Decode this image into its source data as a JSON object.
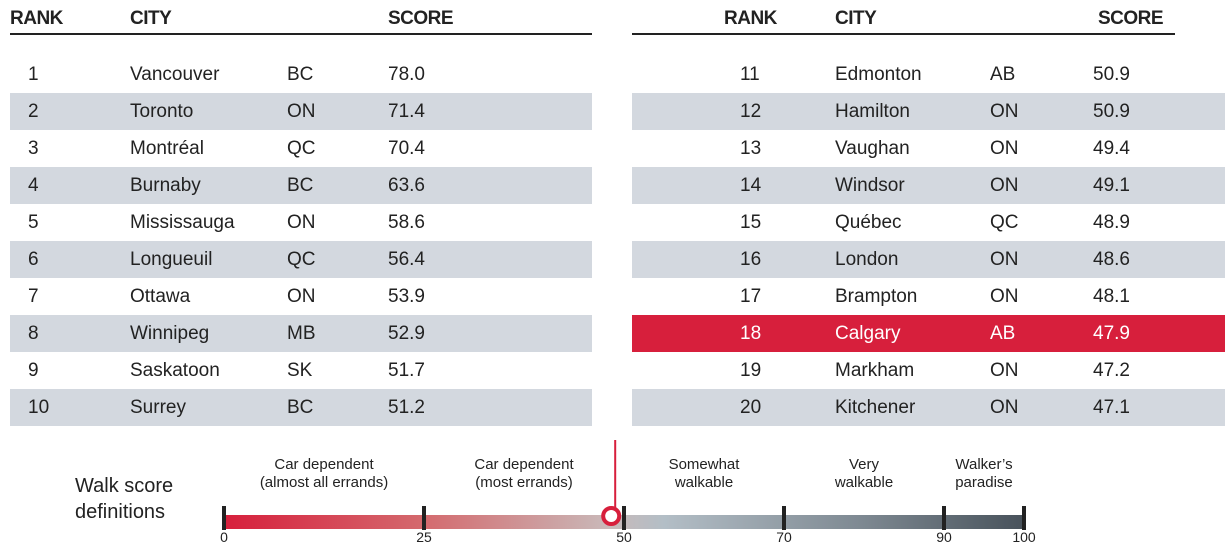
{
  "table": {
    "headers": [
      "RANK",
      "CITY",
      "SCORE"
    ],
    "rows": [
      [
        "1",
        "Vancouver",
        "BC",
        "78.0"
      ],
      [
        "2",
        "Toronto",
        "ON",
        "71.4"
      ],
      [
        "3",
        "Montréal",
        "QC",
        "70.4"
      ],
      [
        "4",
        "Burnaby",
        "BC",
        "63.6"
      ],
      [
        "5",
        "Mississauga",
        "ON",
        "58.6"
      ],
      [
        "6",
        "Longueuil",
        "QC",
        "56.4"
      ],
      [
        "7",
        "Ottawa",
        "ON",
        "53.9"
      ],
      [
        "8",
        "Winnipeg",
        "MB",
        "52.9"
      ],
      [
        "9",
        "Saskatoon",
        "SK",
        "51.7"
      ],
      [
        "10",
        "Surrey",
        "BC",
        "51.2"
      ],
      [
        "11",
        "Edmonton",
        "AB",
        "50.9"
      ],
      [
        "12",
        "Hamilton",
        "ON",
        "50.9"
      ],
      [
        "13",
        "Vaughan",
        "ON",
        "49.4"
      ],
      [
        "14",
        "Windsor",
        "ON",
        "49.1"
      ],
      [
        "15",
        "Québec",
        "QC",
        "48.9"
      ],
      [
        "16",
        "London",
        "ON",
        "48.6"
      ],
      [
        "17",
        "Brampton",
        "ON",
        "48.1"
      ],
      [
        "18",
        "Calgary",
        "AB",
        "47.9"
      ],
      [
        "19",
        "Markham",
        "ON",
        "47.2"
      ],
      [
        "20",
        "Kitchener",
        "ON",
        "47.1"
      ]
    ],
    "highlighted_row": 17
  },
  "scale": {
    "title": [
      "Walk score",
      "definitions"
    ],
    "range": [
      0,
      100
    ],
    "ticks": [
      0,
      25,
      50,
      70,
      90,
      100
    ],
    "categories": [
      [
        "Car dependent",
        "(almost all errands)"
      ],
      [
        "Car dependent",
        "(most errands)"
      ],
      [
        "Somewhat",
        "walkable"
      ],
      [
        "Very",
        "walkable"
      ],
      [
        "Walker’s",
        "paradise"
      ]
    ]
  }
}
